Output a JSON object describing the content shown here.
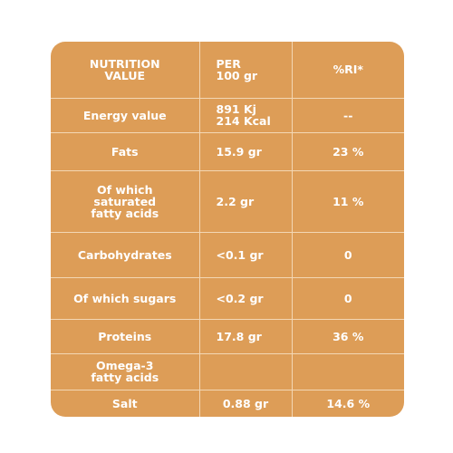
{
  "header": {
    "col1": [
      "NUTRITION",
      "VALUE"
    ],
    "col2": [
      "PER",
      "100 gr"
    ],
    "col3": "%RI*"
  },
  "rows": [
    {
      "label": [
        "Energy value"
      ],
      "per100": [
        "891 Kj",
        "214 Kcal"
      ],
      "ri": "--"
    },
    {
      "label": [
        "Fats"
      ],
      "per100": [
        "15.9 gr"
      ],
      "ri": "23 %"
    },
    {
      "label": [
        "Of which",
        "saturated",
        "fatty acids"
      ],
      "per100": [
        "2.2 gr"
      ],
      "ri": "11 %"
    },
    {
      "label": [
        "Carbohydrates"
      ],
      "per100": [
        "<0.1 gr"
      ],
      "ri": "0"
    },
    {
      "label": [
        "Of which sugars"
      ],
      "per100": [
        "<0.2 gr"
      ],
      "ri": "0"
    },
    {
      "label": [
        "Proteins"
      ],
      "per100": [
        "17.8 gr"
      ],
      "ri": "36 %"
    },
    {
      "label": [
        "Omega-3",
        "fatty acids"
      ],
      "per100": [],
      "ri": ""
    },
    {
      "label": [
        "Salt"
      ],
      "per100": [
        "0.88 gr"
      ],
      "ri": "14.6 %"
    }
  ],
  "colors": {
    "panel": "#dd9d57",
    "gridline": "#f3d7b4",
    "text": "#ffffff"
  }
}
